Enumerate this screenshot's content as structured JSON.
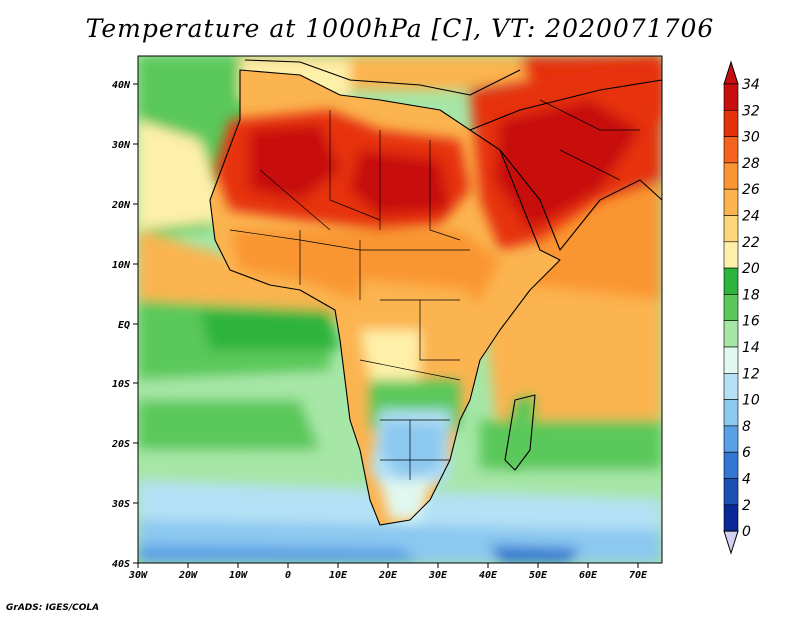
{
  "title": "Temperature at 1000hPa [C], VT: 2020071706",
  "credit": "GrADS: IGES/COLA",
  "lat_labels": [
    "40N",
    "30N",
    "20N",
    "10N",
    "EQ",
    "10S",
    "20S",
    "30S",
    "40S"
  ],
  "lon_labels": [
    "30W",
    "20W",
    "10W",
    "0",
    "10E",
    "20E",
    "30E",
    "40E",
    "50E",
    "60E",
    "70E"
  ],
  "colorbar": {
    "labels": [
      "34",
      "32",
      "30",
      "28",
      "26",
      "24",
      "22",
      "20",
      "18",
      "16",
      "14",
      "12",
      "10",
      "8",
      "6",
      "4",
      "2",
      "0"
    ],
    "colors": [
      "#6e0000",
      "#c80f0f",
      "#e6320a",
      "#f5641e",
      "#fa9632",
      "#fbb450",
      "#fdd67a",
      "#fef0a8",
      "#2db43c",
      "#5ac85a",
      "#a6e6a6",
      "#e0f8f0",
      "#b4e1f5",
      "#8cc8f0",
      "#5aa0e6",
      "#3278d2",
      "#1e50b4",
      "#0a2896",
      "#00145a",
      "#d2d2f0"
    ]
  },
  "colors": {
    "ocean_green": "#5ac85a",
    "land_hot": "#e6320a",
    "desert_core": "#c80f0f",
    "savanna": "#fbb450",
    "south_cool": "#8cc8f0",
    "southern_ocean": "#b4e1f5"
  }
}
